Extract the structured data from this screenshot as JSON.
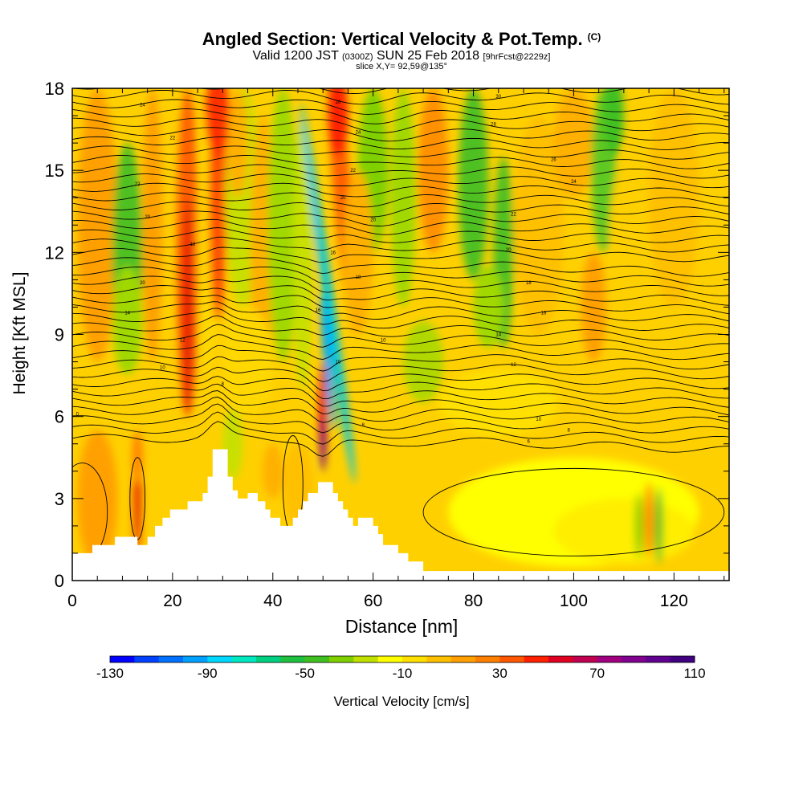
{
  "header": {
    "title": "Angled Section: Vertical Velocity & Pot.Temp.",
    "copyright": "(C)",
    "valid_prefix": "Valid 1200 JST",
    "valid_utc": "(0300Z)",
    "valid_date": "SUN 25 Feb 2018",
    "forecast": "[9hrFcst@2229z]",
    "slice": "slice X,Y= 92,59@135°"
  },
  "chart_data": {
    "type": "heatmap",
    "title": "Angled Section: Vertical Velocity & Pot.Temp.",
    "xlabel": "Distance [nm]",
    "ylabel": "Height [Kft MSL]",
    "xlim": [
      0,
      131
    ],
    "ylim": [
      0,
      18
    ],
    "x_ticks": [
      0,
      20,
      40,
      60,
      80,
      100,
      120
    ],
    "y_ticks": [
      0,
      3,
      6,
      9,
      12,
      15,
      18
    ],
    "colorbar": {
      "label": "Vertical Velocity [cm/s]",
      "ticks": [
        -130,
        -90,
        -50,
        -10,
        30,
        70,
        110
      ],
      "colors": [
        "#0000ff",
        "#0040ff",
        "#0070ff",
        "#00a0ff",
        "#00d8ff",
        "#00e8c0",
        "#00d080",
        "#20c040",
        "#40c020",
        "#80d000",
        "#c0e000",
        "#ffff00",
        "#ffe000",
        "#ffc000",
        "#ffa000",
        "#ff8000",
        "#ff5800",
        "#ff2000",
        "#e00020",
        "#c00050",
        "#a00080",
        "#800090",
        "#600090",
        "#400080"
      ]
    },
    "terrain": [
      [
        0,
        1
      ],
      [
        1,
        1
      ],
      [
        4,
        1
      ],
      [
        4,
        1.3
      ],
      [
        8.5,
        1.3
      ],
      [
        8.5,
        1.6
      ],
      [
        13,
        1.6
      ],
      [
        13,
        1.3
      ],
      [
        15,
        1.3
      ],
      [
        15,
        1.6
      ],
      [
        16.5,
        1.6
      ],
      [
        16.5,
        2
      ],
      [
        18,
        2
      ],
      [
        18,
        2.3
      ],
      [
        19.5,
        2.3
      ],
      [
        19.5,
        2.6
      ],
      [
        23,
        2.6
      ],
      [
        23,
        2.9
      ],
      [
        26,
        2.9
      ],
      [
        26,
        3.2
      ],
      [
        27,
        3.2
      ],
      [
        27,
        3.8
      ],
      [
        28,
        3.8
      ],
      [
        28,
        4.8
      ],
      [
        31,
        4.8
      ],
      [
        31,
        3.8
      ],
      [
        32,
        3.8
      ],
      [
        32,
        3.3
      ],
      [
        33,
        3.3
      ],
      [
        33,
        3
      ],
      [
        35,
        3
      ],
      [
        35,
        3.2
      ],
      [
        37,
        3.2
      ],
      [
        37,
        2.9
      ],
      [
        38.5,
        2.9
      ],
      [
        38.5,
        2.6
      ],
      [
        39.5,
        2.6
      ],
      [
        39.5,
        2.3
      ],
      [
        41.5,
        2.3
      ],
      [
        41.5,
        2
      ],
      [
        44,
        2
      ],
      [
        44,
        2.3
      ],
      [
        45,
        2.3
      ],
      [
        45,
        2.6
      ],
      [
        46,
        2.6
      ],
      [
        46,
        2.9
      ],
      [
        47,
        2.9
      ],
      [
        47,
        3.2
      ],
      [
        49,
        3.2
      ],
      [
        49,
        3.6
      ],
      [
        52,
        3.6
      ],
      [
        52,
        3.2
      ],
      [
        53,
        3.2
      ],
      [
        53,
        2.9
      ],
      [
        54,
        2.9
      ],
      [
        54,
        2.6
      ],
      [
        55,
        2.6
      ],
      [
        55,
        2.3
      ],
      [
        56,
        2.3
      ],
      [
        56,
        2
      ],
      [
        57,
        2
      ],
      [
        57,
        2.3
      ],
      [
        60,
        2.3
      ],
      [
        60,
        2
      ],
      [
        61,
        2
      ],
      [
        61,
        1.7
      ],
      [
        62,
        1.7
      ],
      [
        62,
        1.3
      ],
      [
        65,
        1.3
      ],
      [
        65,
        1
      ],
      [
        67,
        1
      ],
      [
        67,
        0.7
      ],
      [
        70,
        0.7
      ],
      [
        70,
        0.35
      ],
      [
        131,
        0.35
      ]
    ],
    "theta_labels": [
      {
        "x": 1,
        "y": 6.1,
        "text": "0"
      },
      {
        "x": 14,
        "y": 17.4,
        "text": "24"
      },
      {
        "x": 20,
        "y": 16.2,
        "text": "22"
      },
      {
        "x": 13,
        "y": 14.5,
        "text": "22"
      },
      {
        "x": 15,
        "y": 13.3,
        "text": "20"
      },
      {
        "x": 24,
        "y": 12.3,
        "text": "18"
      },
      {
        "x": 14,
        "y": 10.9,
        "text": "20"
      },
      {
        "x": 11,
        "y": 9.8,
        "text": "14"
      },
      {
        "x": 22,
        "y": 8.8,
        "text": "12"
      },
      {
        "x": 18,
        "y": 7.8,
        "text": "10"
      },
      {
        "x": 30,
        "y": 7.2,
        "text": "8"
      },
      {
        "x": 53,
        "y": 17.5,
        "text": "26"
      },
      {
        "x": 57,
        "y": 16.4,
        "text": "24"
      },
      {
        "x": 56,
        "y": 15,
        "text": "22"
      },
      {
        "x": 54,
        "y": 14,
        "text": "20"
      },
      {
        "x": 60,
        "y": 13.2,
        "text": "20"
      },
      {
        "x": 52,
        "y": 12,
        "text": "16"
      },
      {
        "x": 57,
        "y": 11.1,
        "text": "18"
      },
      {
        "x": 49,
        "y": 9.9,
        "text": "16"
      },
      {
        "x": 62,
        "y": 8.8,
        "text": "10"
      },
      {
        "x": 53,
        "y": 8,
        "text": "10"
      },
      {
        "x": 58,
        "y": 5.7,
        "text": "8"
      },
      {
        "x": 85,
        "y": 17.7,
        "text": "30"
      },
      {
        "x": 84,
        "y": 16.7,
        "text": "28"
      },
      {
        "x": 96,
        "y": 15.4,
        "text": "26"
      },
      {
        "x": 100,
        "y": 14.6,
        "text": "24"
      },
      {
        "x": 88,
        "y": 13.4,
        "text": "22"
      },
      {
        "x": 87,
        "y": 12.1,
        "text": "20"
      },
      {
        "x": 91,
        "y": 10.9,
        "text": "18"
      },
      {
        "x": 94,
        "y": 9.8,
        "text": "16"
      },
      {
        "x": 85,
        "y": 9,
        "text": "14"
      },
      {
        "x": 88,
        "y": 7.9,
        "text": "12"
      },
      {
        "x": 93,
        "y": 5.9,
        "text": "10"
      },
      {
        "x": 99,
        "y": 5.5,
        "text": "8"
      },
      {
        "x": 91,
        "y": 5.1,
        "text": "6"
      }
    ]
  }
}
